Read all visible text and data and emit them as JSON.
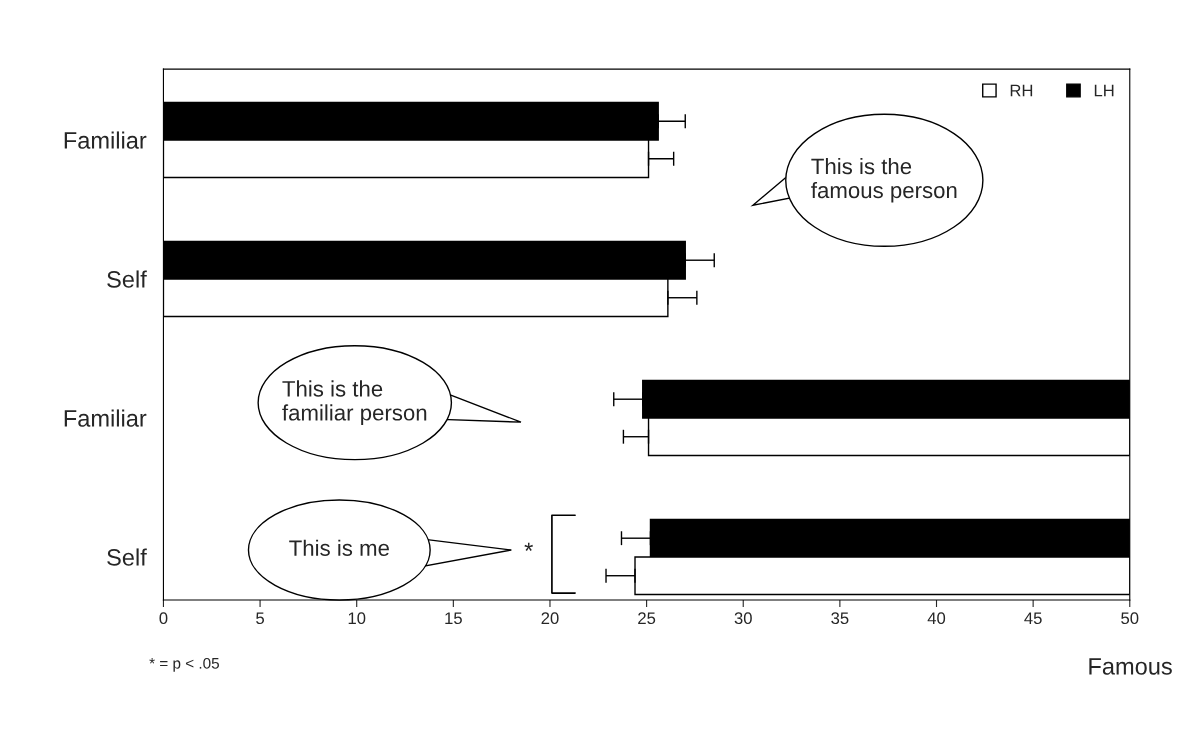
{
  "chart_data": {
    "type": "bar",
    "orientation": "horizontal",
    "categories": [
      "Familiar",
      "Self",
      "Familiar",
      "Self"
    ],
    "series": [
      {
        "name": "LH",
        "color": "#000000",
        "base": [
          0,
          0,
          50,
          50
        ],
        "values": [
          25.6,
          27.0,
          -25.2,
          -24.8
        ],
        "errors": [
          [
            25.6,
            27.0
          ],
          [
            27.0,
            28.5
          ],
          [
            23.3,
            24.8
          ],
          [
            23.7,
            25.2
          ]
        ]
      },
      {
        "name": "RH",
        "color": "#ffffff",
        "base": [
          0,
          0,
          50,
          50
        ],
        "values": [
          25.1,
          26.1,
          -24.9,
          -25.6
        ],
        "errors": [
          [
            25.1,
            26.4
          ],
          [
            26.1,
            27.6
          ],
          [
            23.8,
            25.1
          ],
          [
            22.9,
            24.4
          ]
        ]
      }
    ],
    "xlim": [
      0,
      50
    ],
    "xticks": [
      0,
      5,
      10,
      15,
      20,
      25,
      30,
      35,
      40,
      45,
      50
    ],
    "xlabel": "Famous",
    "legend": "top right",
    "grid": false,
    "annotations": [
      "This is the famous person",
      "This is the familiar person",
      "This is me",
      "*",
      "* = p < .05"
    ]
  }
}
